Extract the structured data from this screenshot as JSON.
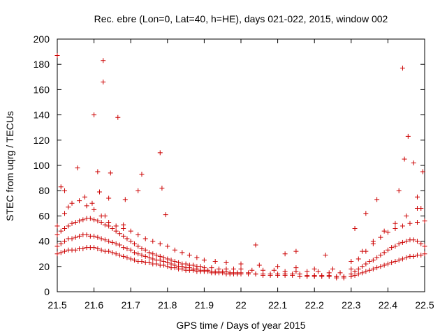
{
  "chart_data": {
    "type": "scatter",
    "title": "Rec. ebre (Lon=0, Lat=40, h=HE), days 021-022, 2015, window 002",
    "xlabel": "GPS time / Days of year 2015",
    "ylabel": "STEC from uqrg / TECUs",
    "xlim": [
      21.5,
      22.5
    ],
    "ylim": [
      0,
      200
    ],
    "xticks": [
      "21.5",
      "21.6",
      "21.7",
      "21.8",
      "21.9",
      "22",
      "22.1",
      "22.2",
      "22.3",
      "22.4",
      "22.5"
    ],
    "yticks": [
      "0",
      "20",
      "40",
      "60",
      "80",
      "100",
      "120",
      "140",
      "160",
      "180",
      "200"
    ],
    "marker": "+",
    "color": "#cc0000",
    "grid": false,
    "series": [
      {
        "x": [
          21.5,
          21.51,
          21.52,
          21.53,
          21.54,
          21.55,
          21.56,
          21.57,
          21.58,
          21.59,
          21.6,
          21.61,
          21.62,
          21.63,
          21.64,
          21.65,
          21.66,
          21.67,
          21.68,
          21.69,
          21.7,
          21.71,
          21.72,
          21.73,
          21.74,
          21.75,
          21.76,
          21.77,
          21.78,
          21.79,
          21.8,
          21.81,
          21.82,
          21.83,
          21.84,
          21.85,
          21.86,
          21.87,
          21.88,
          21.89,
          21.9,
          21.91,
          21.92,
          21.93,
          21.94,
          21.95,
          21.96,
          21.97,
          21.98,
          21.99,
          22.0,
          22.02,
          22.04,
          22.06,
          22.08,
          22.1,
          22.12,
          22.14,
          22.16,
          22.18,
          22.2,
          22.22,
          22.24,
          22.26,
          22.28,
          22.3,
          22.31,
          22.32,
          22.33,
          22.34,
          22.35,
          22.36,
          22.37,
          22.38,
          22.39,
          22.4,
          22.41,
          22.42,
          22.43,
          22.44,
          22.45,
          22.46,
          22.47,
          22.48,
          22.49,
          22.5,
          21.5,
          21.51,
          21.52,
          21.53,
          21.54,
          21.55,
          21.56,
          21.57,
          21.58,
          21.59,
          21.6,
          21.61,
          21.62,
          21.63,
          21.64,
          21.65,
          21.66,
          21.67,
          21.68,
          21.69,
          21.7,
          21.71,
          21.72,
          21.73,
          21.74,
          21.75,
          21.76,
          21.77,
          21.78,
          21.79,
          21.8,
          21.81,
          21.82,
          21.83,
          21.84,
          21.85,
          21.86,
          21.87,
          21.88,
          21.89,
          21.9,
          21.91,
          21.92,
          21.93,
          21.94,
          21.95,
          21.96,
          21.97,
          21.98,
          21.99,
          22.0,
          22.02,
          22.04,
          22.06,
          22.08,
          22.1,
          22.12,
          22.14,
          22.16,
          22.18,
          22.2,
          22.22,
          22.24,
          22.26,
          22.28,
          22.3,
          22.31,
          22.32,
          22.33,
          22.34,
          22.35,
          22.36,
          22.37,
          22.38,
          22.39,
          22.4,
          22.41,
          22.42,
          22.43,
          22.44,
          22.45,
          22.46,
          22.47,
          22.48,
          22.49,
          22.5,
          21.5,
          21.51,
          21.52,
          21.53,
          21.54,
          21.55,
          21.56,
          21.57,
          21.58,
          21.59,
          21.6,
          21.61,
          21.62,
          21.63,
          21.64,
          21.65,
          21.66,
          21.67,
          21.68,
          21.69,
          21.7,
          21.71,
          21.72,
          21.73,
          21.74,
          21.75,
          21.76,
          21.77,
          21.78,
          21.79,
          21.8,
          21.81,
          21.82,
          21.83,
          21.84,
          21.85,
          21.86,
          21.87,
          21.88,
          21.89,
          21.9,
          21.92,
          21.94,
          21.96,
          21.98,
          22.0,
          22.03,
          22.06,
          22.09,
          22.12,
          22.15,
          22.18,
          22.21,
          22.24,
          22.27,
          22.3,
          22.32,
          22.34,
          22.36,
          22.38,
          22.4,
          22.42,
          22.44,
          22.46,
          22.48,
          22.5,
          21.5,
          21.52,
          21.54,
          21.56,
          21.58,
          21.6,
          21.62,
          21.64,
          21.66,
          21.68,
          21.7,
          21.72,
          21.74,
          21.76,
          21.78,
          21.8,
          21.82,
          21.84,
          21.86,
          21.88,
          21.9,
          21.93,
          21.96,
          22.0,
          22.05,
          22.1,
          22.15,
          22.2,
          22.25,
          22.3,
          22.33,
          22.36,
          22.39,
          22.42,
          22.45,
          22.48,
          21.5,
          21.51,
          21.52,
          21.53,
          21.555,
          21.575,
          21.595,
          21.6,
          21.61,
          21.615,
          21.625,
          21.625,
          21.63,
          21.64,
          21.645,
          21.665,
          21.68,
          21.685,
          21.72,
          21.73,
          21.78,
          21.785,
          21.795,
          22.04,
          22.12,
          22.15,
          22.23,
          22.31,
          22.34,
          22.37,
          22.43,
          22.44,
          22.445,
          22.455,
          22.47,
          22.48,
          22.49,
          22.495
        ],
        "y": [
          30,
          31,
          32,
          33,
          33,
          33,
          34,
          34,
          35,
          35,
          35,
          34,
          33,
          32,
          32,
          31,
          30,
          29,
          28,
          27,
          26,
          25,
          24,
          24,
          23,
          23,
          22,
          22,
          21,
          21,
          20,
          19,
          19,
          18,
          18,
          17,
          17,
          17,
          16,
          16,
          16,
          16,
          15,
          15,
          15,
          15,
          14,
          14,
          14,
          14,
          14,
          14,
          14,
          13,
          13,
          13,
          13,
          13,
          12,
          12,
          12,
          12,
          12,
          11,
          11,
          12,
          13,
          14,
          15,
          16,
          17,
          18,
          19,
          20,
          21,
          22,
          23,
          24,
          25,
          26,
          27,
          28,
          28,
          29,
          29,
          30,
          36,
          38,
          40,
          42,
          42,
          43,
          44,
          45,
          45,
          44,
          44,
          43,
          42,
          41,
          40,
          39,
          38,
          37,
          35,
          34,
          33,
          31,
          30,
          29,
          28,
          27,
          26,
          25,
          25,
          24,
          23,
          22,
          21,
          20,
          20,
          19,
          19,
          18,
          18,
          17,
          17,
          17,
          16,
          16,
          16,
          16,
          16,
          15,
          15,
          15,
          15,
          15,
          14,
          14,
          14,
          14,
          14,
          14,
          14,
          13,
          13,
          13,
          13,
          12,
          12,
          14,
          16,
          18,
          20,
          22,
          24,
          25,
          27,
          29,
          31,
          33,
          35,
          36,
          38,
          39,
          40,
          41,
          41,
          40,
          38,
          36,
          45,
          48,
          50,
          52,
          54,
          55,
          56,
          57,
          58,
          58,
          57,
          56,
          55,
          53,
          52,
          50,
          48,
          46,
          44,
          42,
          40,
          38,
          36,
          34,
          33,
          31,
          30,
          29,
          28,
          27,
          26,
          25,
          24,
          23,
          22,
          22,
          21,
          21,
          20,
          20,
          19,
          19,
          18,
          18,
          18,
          18,
          17,
          17,
          17,
          16,
          16,
          16,
          16,
          15,
          15,
          18,
          26,
          32,
          38,
          43,
          47,
          50,
          52,
          54,
          55,
          56,
          52,
          62,
          70,
          72,
          68,
          65,
          60,
          55,
          52,
          50,
          48,
          45,
          42,
          40,
          38,
          36,
          33,
          31,
          29,
          27,
          25,
          24,
          23,
          22,
          21,
          20,
          19,
          18,
          18,
          24,
          32,
          40,
          48,
          54,
          60,
          66,
          187,
          83,
          80,
          67,
          98,
          75,
          70,
          140,
          95,
          79,
          166,
          183,
          60,
          74,
          94,
          138,
          53,
          73,
          80,
          93,
          110,
          82,
          61,
          37,
          30,
          32,
          29,
          50,
          62,
          73,
          80,
          177,
          105,
          123,
          102,
          75,
          66,
          95
        ]
      }
    ]
  }
}
